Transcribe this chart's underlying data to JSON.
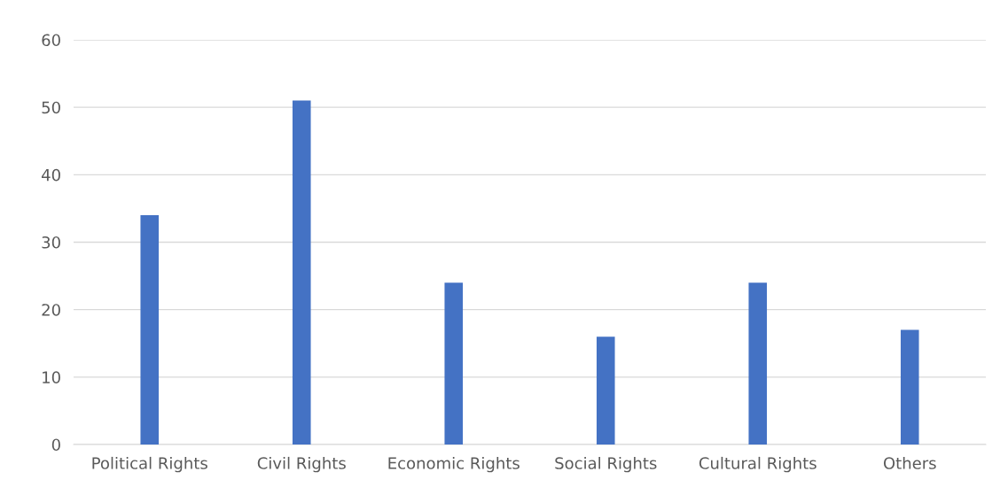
{
  "chart_data": {
    "type": "bar",
    "categories": [
      "Political Rights",
      "Civil Rights",
      "Economic Rights",
      "Social Rights",
      "Cultural Rights",
      "Others"
    ],
    "values": [
      34,
      51,
      24,
      16,
      24,
      17
    ],
    "color": "#4472c4",
    "ylim": [
      0,
      60
    ],
    "yticks": [
      0,
      10,
      20,
      30,
      40,
      50,
      60
    ],
    "grid": "y",
    "legend": false
  }
}
